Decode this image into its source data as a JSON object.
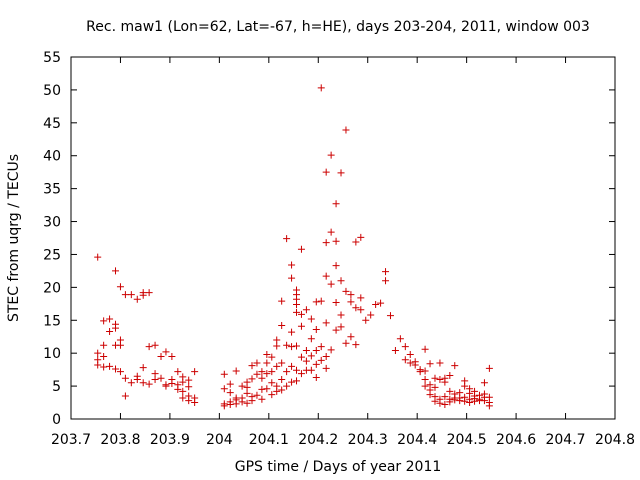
{
  "chart_data": {
    "type": "scatter",
    "title": "Rec. maw1 (Lon=62, Lat=-67, h=HE), days 203-204, 2011, window 003",
    "xlabel": "GPS time / Days of year 2011",
    "ylabel": "STEC from uqrg / TECUs",
    "xlim": [
      203.7,
      204.8
    ],
    "ylim": [
      0,
      55
    ],
    "x_ticks": [
      203.7,
      203.8,
      203.9,
      204.0,
      204.1,
      204.2,
      204.3,
      204.4,
      204.5,
      204.6,
      204.7,
      204.8
    ],
    "x_tick_labels": [
      "203.7",
      "203.8",
      "203.9",
      "204",
      "204.1",
      "204.2",
      "204.3",
      "204.4",
      "204.5",
      "204.6",
      "204.7",
      "204.8"
    ],
    "y_ticks": [
      0,
      5,
      10,
      15,
      20,
      25,
      30,
      35,
      40,
      45,
      50,
      55
    ],
    "y_tick_labels": [
      "0",
      "5",
      "10",
      "15",
      "20",
      "25",
      "30",
      "35",
      "40",
      "45",
      "50",
      "55"
    ],
    "marker": "+",
    "color": "#cc0000",
    "series": [
      {
        "name": "STEC",
        "points": [
          [
            203.754,
            24.6
          ],
          [
            203.754,
            10.0
          ],
          [
            203.754,
            9.0
          ],
          [
            203.754,
            8.2
          ],
          [
            203.766,
            14.9
          ],
          [
            203.766,
            11.2
          ],
          [
            203.766,
            9.5
          ],
          [
            203.766,
            7.9
          ],
          [
            203.778,
            15.2
          ],
          [
            203.778,
            13.3
          ],
          [
            203.778,
            8.0
          ],
          [
            203.79,
            22.5
          ],
          [
            203.79,
            14.4
          ],
          [
            203.79,
            13.8
          ],
          [
            203.79,
            11.2
          ],
          [
            203.79,
            7.6
          ],
          [
            203.8,
            20.1
          ],
          [
            203.8,
            12.0
          ],
          [
            203.8,
            11.2
          ],
          [
            203.8,
            7.2
          ],
          [
            203.81,
            18.9
          ],
          [
            203.81,
            6.2
          ],
          [
            203.81,
            3.5
          ],
          [
            203.822,
            18.9
          ],
          [
            203.822,
            5.5
          ],
          [
            203.834,
            18.2
          ],
          [
            203.834,
            6.5
          ],
          [
            203.834,
            6.0
          ],
          [
            203.846,
            19.2
          ],
          [
            203.846,
            18.8
          ],
          [
            203.846,
            7.8
          ],
          [
            203.846,
            5.5
          ],
          [
            203.858,
            19.2
          ],
          [
            203.858,
            11.0
          ],
          [
            203.858,
            5.3
          ],
          [
            203.87,
            11.2
          ],
          [
            203.87,
            6.9
          ],
          [
            203.87,
            6.0
          ],
          [
            203.882,
            9.5
          ],
          [
            203.882,
            6.2
          ],
          [
            203.892,
            10.2
          ],
          [
            203.892,
            5.2
          ],
          [
            203.892,
            5.0
          ],
          [
            203.904,
            9.5
          ],
          [
            203.904,
            6.0
          ],
          [
            203.904,
            5.4
          ],
          [
            203.916,
            7.2
          ],
          [
            203.916,
            4.5
          ],
          [
            203.916,
            5.2
          ],
          [
            203.926,
            6.4
          ],
          [
            203.926,
            5.6
          ],
          [
            203.926,
            4.2
          ],
          [
            203.926,
            3.2
          ],
          [
            203.938,
            5.9
          ],
          [
            203.938,
            4.9
          ],
          [
            203.938,
            3.5
          ],
          [
            203.938,
            2.8
          ],
          [
            203.95,
            7.2
          ],
          [
            203.95,
            3.2
          ],
          [
            203.95,
            2.5
          ],
          [
            204.01,
            6.8
          ],
          [
            204.01,
            4.6
          ],
          [
            204.01,
            2.3
          ],
          [
            204.01,
            2.0
          ],
          [
            204.022,
            5.3
          ],
          [
            204.022,
            4.0
          ],
          [
            204.022,
            2.6
          ],
          [
            204.022,
            2.2
          ],
          [
            204.034,
            7.3
          ],
          [
            204.034,
            3.2
          ],
          [
            204.034,
            2.9
          ],
          [
            204.034,
            2.3
          ],
          [
            204.046,
            5.0
          ],
          [
            204.046,
            3.2
          ],
          [
            204.046,
            2.6
          ],
          [
            204.056,
            5.6
          ],
          [
            204.056,
            4.8
          ],
          [
            204.056,
            3.9
          ],
          [
            204.056,
            2.4
          ],
          [
            204.066,
            8.1
          ],
          [
            204.066,
            6.1
          ],
          [
            204.066,
            3.4
          ],
          [
            204.066,
            2.8
          ],
          [
            204.076,
            8.5
          ],
          [
            204.076,
            6.8
          ],
          [
            204.076,
            3.6
          ],
          [
            204.086,
            7.2
          ],
          [
            204.086,
            6.2
          ],
          [
            204.086,
            4.5
          ],
          [
            204.086,
            3.0
          ],
          [
            204.096,
            9.8
          ],
          [
            204.096,
            8.5
          ],
          [
            204.096,
            6.9
          ],
          [
            204.096,
            4.6
          ],
          [
            204.106,
            9.4
          ],
          [
            204.106,
            7.2
          ],
          [
            204.106,
            5.5
          ],
          [
            204.106,
            3.7
          ],
          [
            204.116,
            12.0
          ],
          [
            204.116,
            11.1
          ],
          [
            204.116,
            8.0
          ],
          [
            204.116,
            5.0
          ],
          [
            204.116,
            4.2
          ],
          [
            204.126,
            17.9
          ],
          [
            204.126,
            14.2
          ],
          [
            204.126,
            8.5
          ],
          [
            204.126,
            6.0
          ],
          [
            204.126,
            4.4
          ],
          [
            204.136,
            27.4
          ],
          [
            204.136,
            11.2
          ],
          [
            204.136,
            7.2
          ],
          [
            204.136,
            5.0
          ],
          [
            204.146,
            23.4
          ],
          [
            204.146,
            21.4
          ],
          [
            204.146,
            13.2
          ],
          [
            204.146,
            11.0
          ],
          [
            204.146,
            8.0
          ],
          [
            204.146,
            5.6
          ],
          [
            204.156,
            19.6
          ],
          [
            204.156,
            18.9
          ],
          [
            204.156,
            18.2
          ],
          [
            204.156,
            17.4
          ],
          [
            204.156,
            16.2
          ],
          [
            204.156,
            11.1
          ],
          [
            204.156,
            7.4
          ],
          [
            204.156,
            5.8
          ],
          [
            204.166,
            25.8
          ],
          [
            204.166,
            15.9
          ],
          [
            204.166,
            14.1
          ],
          [
            204.166,
            9.4
          ],
          [
            204.166,
            6.9
          ],
          [
            204.176,
            16.6
          ],
          [
            204.176,
            10.4
          ],
          [
            204.176,
            8.8
          ],
          [
            204.176,
            7.4
          ],
          [
            204.186,
            15.2
          ],
          [
            204.186,
            12.2
          ],
          [
            204.186,
            9.6
          ],
          [
            204.186,
            7.4
          ],
          [
            204.196,
            17.8
          ],
          [
            204.196,
            13.6
          ],
          [
            204.196,
            10.4
          ],
          [
            204.196,
            8.3
          ],
          [
            204.196,
            6.3
          ],
          [
            204.206,
            50.3
          ],
          [
            204.206,
            17.9
          ],
          [
            204.206,
            11.0
          ],
          [
            204.206,
            8.9
          ],
          [
            204.216,
            37.5
          ],
          [
            204.216,
            26.8
          ],
          [
            204.216,
            21.7
          ],
          [
            204.216,
            14.6
          ],
          [
            204.216,
            9.5
          ],
          [
            204.216,
            7.7
          ],
          [
            204.226,
            40.1
          ],
          [
            204.226,
            28.4
          ],
          [
            204.226,
            20.5
          ],
          [
            204.226,
            10.5
          ],
          [
            204.236,
            32.7
          ],
          [
            204.236,
            27.0
          ],
          [
            204.236,
            23.3
          ],
          [
            204.236,
            17.7
          ],
          [
            204.236,
            13.5
          ],
          [
            204.246,
            37.4
          ],
          [
            204.246,
            21.0
          ],
          [
            204.246,
            15.8
          ],
          [
            204.246,
            14.0
          ],
          [
            204.256,
            43.9
          ],
          [
            204.256,
            19.4
          ],
          [
            204.256,
            11.5
          ],
          [
            204.266,
            18.9
          ],
          [
            204.266,
            17.8
          ],
          [
            204.266,
            12.5
          ],
          [
            204.276,
            26.9
          ],
          [
            204.276,
            16.9
          ],
          [
            204.276,
            11.3
          ],
          [
            204.286,
            27.6
          ],
          [
            204.286,
            18.4
          ],
          [
            204.286,
            16.6
          ],
          [
            204.296,
            15.0
          ],
          [
            204.306,
            15.8
          ],
          [
            204.316,
            17.4
          ],
          [
            204.326,
            17.6
          ],
          [
            204.336,
            22.4
          ],
          [
            204.336,
            21.0
          ],
          [
            204.346,
            15.7
          ],
          [
            204.356,
            10.4
          ],
          [
            204.366,
            12.2
          ],
          [
            204.376,
            11.0
          ],
          [
            204.376,
            9.0
          ],
          [
            204.386,
            9.8
          ],
          [
            204.386,
            8.5
          ],
          [
            204.396,
            8.7
          ],
          [
            204.396,
            8.2
          ],
          [
            204.406,
            7.5
          ],
          [
            204.406,
            7.2
          ],
          [
            204.416,
            10.6
          ],
          [
            204.416,
            7.3
          ],
          [
            204.416,
            6.0
          ],
          [
            204.416,
            5.0
          ],
          [
            204.426,
            8.4
          ],
          [
            204.426,
            5.2
          ],
          [
            204.426,
            4.4
          ],
          [
            204.426,
            3.7
          ],
          [
            204.436,
            6.2
          ],
          [
            204.436,
            4.8
          ],
          [
            204.436,
            3.4
          ],
          [
            204.436,
            2.7
          ],
          [
            204.446,
            8.5
          ],
          [
            204.446,
            6.0
          ],
          [
            204.446,
            3.0
          ],
          [
            204.446,
            2.4
          ],
          [
            204.456,
            6.2
          ],
          [
            204.456,
            5.6
          ],
          [
            204.456,
            3.4
          ],
          [
            204.456,
            2.2
          ],
          [
            204.466,
            6.6
          ],
          [
            204.466,
            4.2
          ],
          [
            204.466,
            3.0
          ],
          [
            204.466,
            2.6
          ],
          [
            204.476,
            8.1
          ],
          [
            204.476,
            3.8
          ],
          [
            204.476,
            3.2
          ],
          [
            204.476,
            2.9
          ],
          [
            204.486,
            4.0
          ],
          [
            204.486,
            3.2
          ],
          [
            204.486,
            2.8
          ],
          [
            204.496,
            5.8
          ],
          [
            204.496,
            5.0
          ],
          [
            204.496,
            3.3
          ],
          [
            204.496,
            2.7
          ],
          [
            204.506,
            4.6
          ],
          [
            204.506,
            3.9
          ],
          [
            204.506,
            3.0
          ],
          [
            204.506,
            2.5
          ],
          [
            204.516,
            4.2
          ],
          [
            204.516,
            3.5
          ],
          [
            204.516,
            3.1
          ],
          [
            204.516,
            2.7
          ],
          [
            204.526,
            3.6
          ],
          [
            204.526,
            3.0
          ],
          [
            204.526,
            2.8
          ],
          [
            204.536,
            5.5
          ],
          [
            204.536,
            3.8
          ],
          [
            204.536,
            3.3
          ],
          [
            204.536,
            2.8
          ],
          [
            204.546,
            7.7
          ],
          [
            204.546,
            3.3
          ],
          [
            204.546,
            2.5
          ],
          [
            204.546,
            2.0
          ]
        ]
      }
    ]
  }
}
